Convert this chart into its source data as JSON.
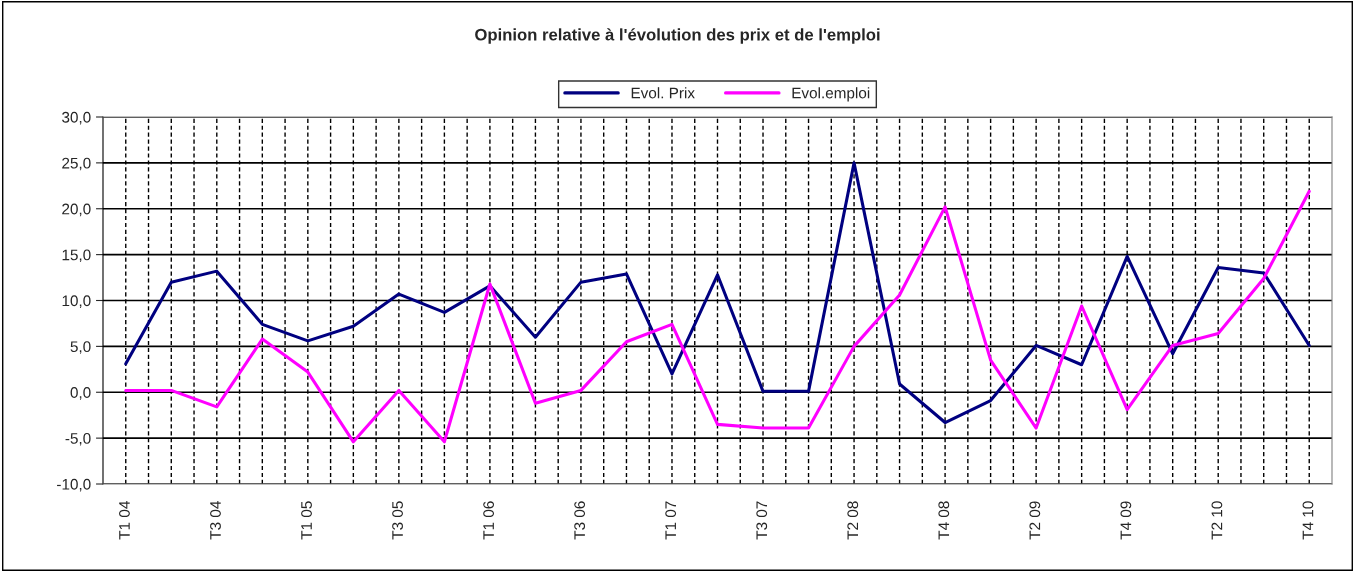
{
  "chart_data": {
    "type": "line",
    "title": "Opinion relative à l'évolution des prix et de l'emploi",
    "categories": [
      "T1 04",
      null,
      "T3 04",
      null,
      "T1 05",
      null,
      "T3 05",
      null,
      "T1 06",
      null,
      "T3 06",
      null,
      "T1 07",
      null,
      "T3 07",
      null,
      "T2 08",
      null,
      "T4 08",
      null,
      "T2 09",
      null,
      "T4 09",
      null,
      "T2 10",
      null,
      "T4 10"
    ],
    "series": [
      {
        "name": "Evol. Prix",
        "color": "#000080",
        "values": [
          3.1,
          12.0,
          13.2,
          7.4,
          5.6,
          7.2,
          10.7,
          8.7,
          11.6,
          6.0,
          12.0,
          12.9,
          2.0,
          12.8,
          0.1,
          0.1,
          25.0,
          0.9,
          -3.3,
          -0.9,
          5.1,
          3.0,
          14.8,
          4.2,
          13.6,
          13.0,
          5.1
        ]
      },
      {
        "name": "Evol.emploi",
        "color": "#ff00ff",
        "values": [
          0.2,
          0.2,
          -1.6,
          5.8,
          2.2,
          -5.4,
          0.2,
          -5.4,
          11.8,
          -1.2,
          0.2,
          5.5,
          7.4,
          -3.5,
          -3.9,
          -3.9,
          5.0,
          10.6,
          20.2,
          3.5,
          -3.9,
          9.4,
          -1.9,
          5.1,
          6.4,
          12.4,
          21.9
        ]
      }
    ],
    "ylim": [
      -10,
      30
    ],
    "yticks": [
      {
        "value": -10,
        "label": "-10,0"
      },
      {
        "value": -5,
        "label": "-5,0"
      },
      {
        "value": 0,
        "label": "0,0"
      },
      {
        "value": 5,
        "label": "5,0"
      },
      {
        "value": 10,
        "label": "10,0"
      },
      {
        "value": 15,
        "label": "15,0"
      },
      {
        "value": 20,
        "label": "20,0"
      },
      {
        "value": 25,
        "label": "25,0"
      },
      {
        "value": 30,
        "label": "30,0"
      }
    ],
    "grid": true,
    "legend": "top",
    "marker": "none",
    "line_style": "solid"
  }
}
